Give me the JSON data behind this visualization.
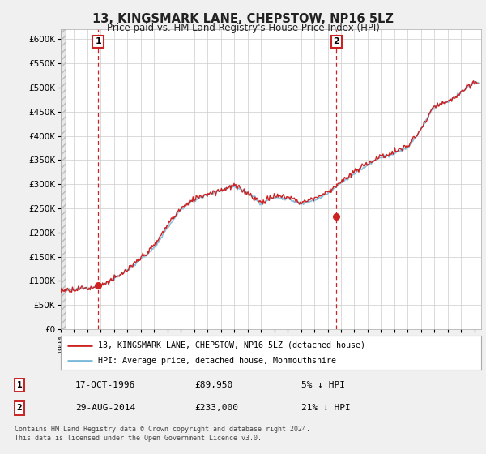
{
  "title": "13, KINGSMARK LANE, CHEPSTOW, NP16 5LZ",
  "subtitle": "Price paid vs. HM Land Registry's House Price Index (HPI)",
  "ylim": [
    0,
    620000
  ],
  "yticks": [
    0,
    50000,
    100000,
    150000,
    200000,
    250000,
    300000,
    350000,
    400000,
    450000,
    500000,
    550000,
    600000
  ],
  "ytick_labels": [
    "£0",
    "£50K",
    "£100K",
    "£150K",
    "£200K",
    "£250K",
    "£300K",
    "£350K",
    "£400K",
    "£450K",
    "£500K",
    "£550K",
    "£600K"
  ],
  "hpi_color": "#7ab8d9",
  "price_color": "#cc2222",
  "background_color": "#f0f0f0",
  "plot_bg_color": "#ffffff",
  "grid_color": "#cccccc",
  "transaction1": {
    "x": 1996.8,
    "price": 89950,
    "label": "1"
  },
  "transaction2": {
    "x": 2014.65,
    "price": 233000,
    "label": "2"
  },
  "legend_line1": "13, KINGSMARK LANE, CHEPSTOW, NP16 5LZ (detached house)",
  "legend_line2": "HPI: Average price, detached house, Monmouthshire",
  "table_rows": [
    {
      "num": "1",
      "date": "17-OCT-1996",
      "price": "£89,950",
      "pct": "5% ↓ HPI"
    },
    {
      "num": "2",
      "date": "29-AUG-2014",
      "price": "£233,000",
      "pct": "21% ↓ HPI"
    }
  ],
  "footer": "Contains HM Land Registry data © Crown copyright and database right 2024.\nThis data is licensed under the Open Government Licence v3.0.",
  "xmin": 1994,
  "xmax": 2025.5,
  "hpi_curve": [
    [
      1994.0,
      80000
    ],
    [
      1995.0,
      83000
    ],
    [
      1996.0,
      86000
    ],
    [
      1997.0,
      92000
    ],
    [
      1998.0,
      105000
    ],
    [
      1999.0,
      122000
    ],
    [
      2000.0,
      145000
    ],
    [
      2001.0,
      168000
    ],
    [
      2002.0,
      210000
    ],
    [
      2003.0,
      248000
    ],
    [
      2004.0,
      268000
    ],
    [
      2005.0,
      278000
    ],
    [
      2006.0,
      285000
    ],
    [
      2007.0,
      295000
    ],
    [
      2008.0,
      280000
    ],
    [
      2009.0,
      258000
    ],
    [
      2010.0,
      272000
    ],
    [
      2011.0,
      268000
    ],
    [
      2012.0,
      258000
    ],
    [
      2013.0,
      265000
    ],
    [
      2014.0,
      278000
    ],
    [
      2015.0,
      300000
    ],
    [
      2016.0,
      320000
    ],
    [
      2017.0,
      340000
    ],
    [
      2018.0,
      355000
    ],
    [
      2019.0,
      365000
    ],
    [
      2020.0,
      375000
    ],
    [
      2021.0,
      415000
    ],
    [
      2022.0,
      460000
    ],
    [
      2023.0,
      470000
    ],
    [
      2024.0,
      490000
    ],
    [
      2025.0,
      510000
    ]
  ]
}
